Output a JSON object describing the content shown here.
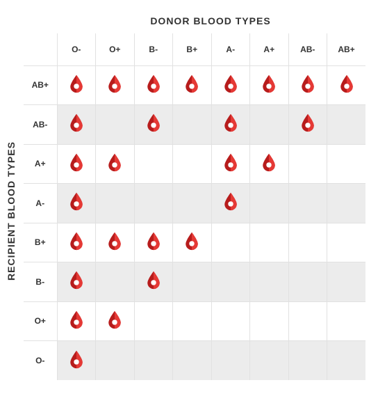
{
  "titles": {
    "top": "DONOR BLOOD TYPES",
    "left": "RECIPIENT BLOOD TYPES"
  },
  "style": {
    "background_color": "#ffffff",
    "shaded_row_color": "#ececec",
    "grid_line_color": "#e1e1e1",
    "text_color": "#333333",
    "title_fontsize_pt": 11,
    "header_fontsize_pt": 9,
    "title_weight": "700",
    "header_weight": "700",
    "font_family": "Arial",
    "drop_fill_dark": "#b71c1c",
    "drop_fill_light": "#e53935",
    "drop_hole_color": "#ffffff"
  },
  "chart": {
    "type": "table",
    "donors": [
      "O-",
      "O+",
      "B-",
      "B+",
      "A-",
      "A+",
      "AB-",
      "AB+"
    ],
    "recipients": [
      "AB+",
      "AB-",
      "A+",
      "A-",
      "B+",
      "B-",
      "O+",
      "O-"
    ],
    "shaded_recipients": [
      "AB-",
      "A-",
      "B-",
      "O-"
    ],
    "matrix": [
      [
        1,
        1,
        1,
        1,
        1,
        1,
        1,
        1
      ],
      [
        1,
        0,
        1,
        0,
        1,
        0,
        1,
        0
      ],
      [
        1,
        1,
        0,
        0,
        1,
        1,
        0,
        0
      ],
      [
        1,
        0,
        0,
        0,
        1,
        0,
        0,
        0
      ],
      [
        1,
        1,
        1,
        1,
        0,
        0,
        0,
        0
      ],
      [
        1,
        0,
        1,
        0,
        0,
        0,
        0,
        0
      ],
      [
        1,
        1,
        0,
        0,
        0,
        0,
        0,
        0
      ],
      [
        1,
        0,
        0,
        0,
        0,
        0,
        0,
        0
      ]
    ]
  }
}
